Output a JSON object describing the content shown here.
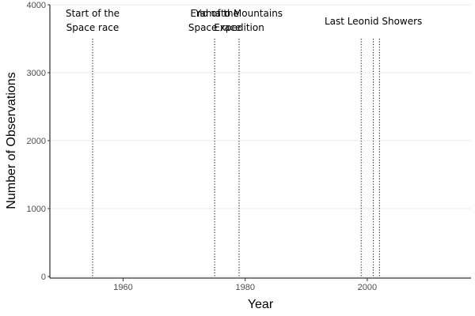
{
  "chart_data": {
    "type": "line",
    "title": "",
    "xlabel": "Year",
    "ylabel": "Number of Observations",
    "xlim": [
      1948,
      2017
    ],
    "ylim": [
      0,
      4000
    ],
    "x_ticks": [
      1960,
      1980,
      2000
    ],
    "y_ticks": [
      0,
      1000,
      2000,
      3000,
      4000
    ],
    "grid": "horizontal major lines",
    "series": [],
    "vertical_lines": [
      {
        "x": 1955,
        "style": "dotted"
      },
      {
        "x": 1975,
        "style": "dotted"
      },
      {
        "x": 1979,
        "style": "dotted"
      },
      {
        "x": 1999,
        "style": "dotted"
      },
      {
        "x": 2001,
        "style": "dotted"
      },
      {
        "x": 2002,
        "style": "dotted"
      }
    ],
    "annotations": [
      {
        "lines": [
          "Start of the",
          "Space race"
        ],
        "x": 1955
      },
      {
        "lines": [
          "End of the",
          "Space race"
        ],
        "x": 1975
      },
      {
        "lines": [
          "Yamato Mountains",
          "Expedition"
        ],
        "x": 1979
      },
      {
        "lines": [
          "Last Leonid Showers"
        ],
        "x": 2001
      }
    ]
  }
}
